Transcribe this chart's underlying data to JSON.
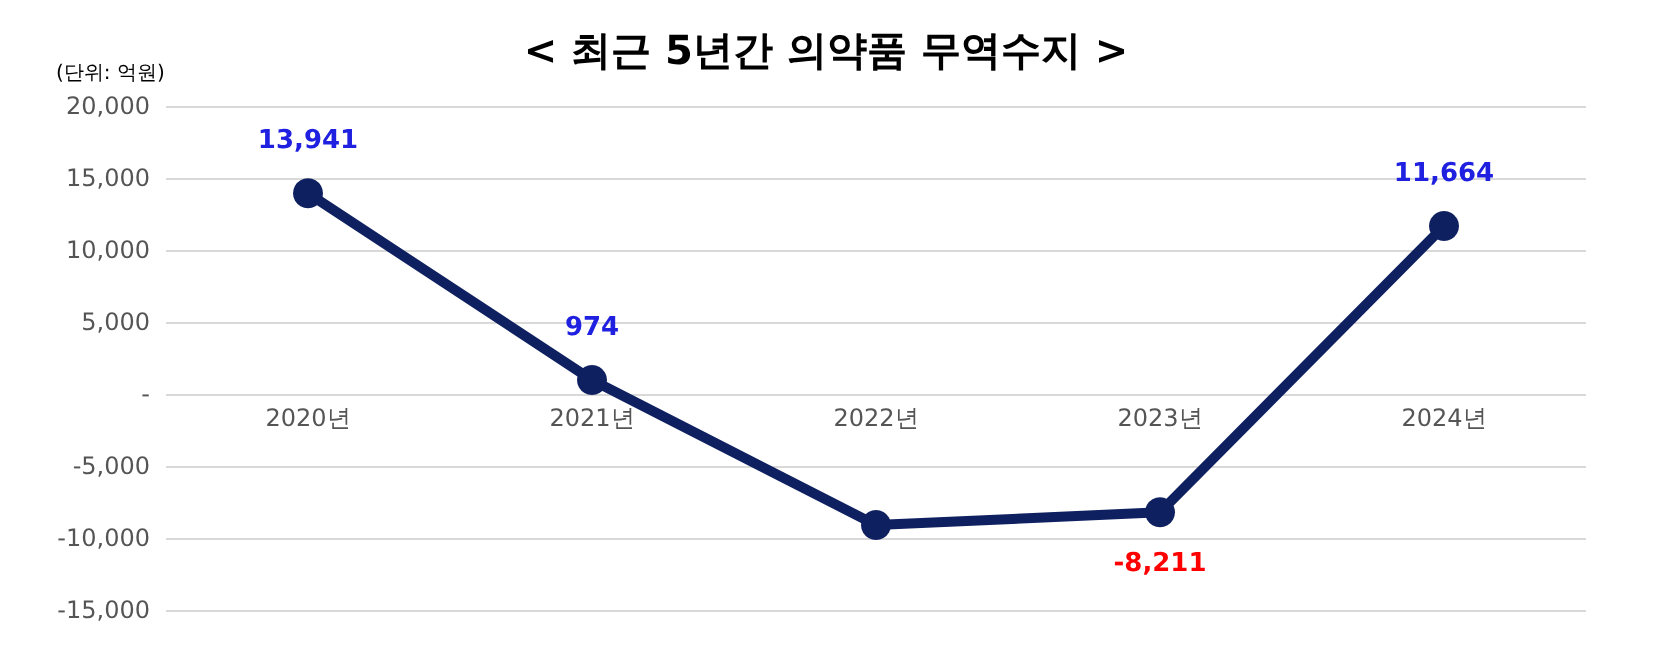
{
  "chart_data": {
    "type": "line",
    "title": "< 최근 5년간 의약품 무역수지 >",
    "annotations": [
      "(단위: 억원)"
    ],
    "categories": [
      "2020년",
      "2021년",
      "2022년",
      "2023년",
      "2024년"
    ],
    "series": [
      {
        "color": "#0f2060",
        "values": [
          13941,
          974,
          -9100,
          -8211,
          11664
        ],
        "value_labels": [
          "13,941",
          "974",
          null,
          "-8,211",
          "11,664"
        ]
      }
    ],
    "ylim": [
      -15000,
      20000
    ],
    "yticks": [
      {
        "value": -15000,
        "label": "-15,000"
      },
      {
        "value": -10000,
        "label": "-10,000"
      },
      {
        "value": -5000,
        "label": "-5,000"
      },
      {
        "value": 0,
        "label": "-"
      },
      {
        "value": 5000,
        "label": "5,000"
      },
      {
        "value": 10000,
        "label": "10,000"
      },
      {
        "value": 15000,
        "label": "15,000"
      },
      {
        "value": 20000,
        "label": "20,000"
      }
    ],
    "grid": "y",
    "marker": "circle",
    "line_style": "solid"
  }
}
